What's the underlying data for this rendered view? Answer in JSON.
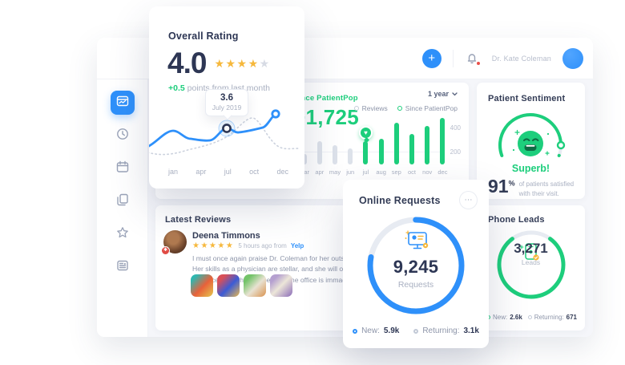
{
  "topbar": {
    "add_label": "+",
    "user_name": "Dr. Kate Coleman"
  },
  "rating_card": {
    "title": "Overall Rating",
    "score": "4.0",
    "stars_filled": "★★★★",
    "stars_empty": "★",
    "delta": "+0.5",
    "delta_text": " points from last month",
    "tooltip_value": "3.6",
    "tooltip_label": "July 2019",
    "months": [
      "jan",
      "apr",
      "jul",
      "oct",
      "dec"
    ]
  },
  "reviews_chart": {
    "range_label": "1 year",
    "since_label": "Since PatientPop",
    "total": "+1,725",
    "legend": {
      "reviews": "Reviews",
      "since": "Since PatientPop"
    },
    "y_ticks": [
      "400",
      "200"
    ],
    "chart_data": {
      "type": "bar",
      "categories": [
        "mar",
        "apr",
        "may",
        "jun",
        "jul",
        "aug",
        "sep",
        "oct",
        "nov",
        "dec"
      ],
      "values": [
        90,
        200,
        160,
        135,
        200,
        220,
        350,
        260,
        325,
        400
      ],
      "green_from_index": 4,
      "ylim": [
        0,
        400
      ],
      "colors": {
        "before": "#dde2ea",
        "after": "#1dce7c"
      }
    }
  },
  "sentiment": {
    "title": "Patient Sentiment",
    "status": "Superb!",
    "percent": "91",
    "percent_sign": "%",
    "caption": "of patients satisfied with their visit.",
    "gauge_dash": "91 9",
    "chart_data": {
      "type": "gauge",
      "percent": 91
    }
  },
  "online_requests": {
    "title": "Online Requests",
    "menu": "⋯",
    "value": "9,245",
    "unit": "Requests",
    "dash": "78 22",
    "legend": {
      "new_label": "New:",
      "new_value": "5.9k",
      "returning_label": "Returning:",
      "returning_value": "3.1k"
    },
    "chart_data": {
      "type": "donut",
      "total": 9245,
      "new": 5900,
      "returning": 3100
    }
  },
  "phone_leads": {
    "title": "Phone Leads",
    "value": "3,271",
    "unit": "Leads",
    "dash": "80 20",
    "legend": {
      "new_label": "New:",
      "new_value": "2.6k",
      "returning_label": "Returning:",
      "returning_value": "671"
    },
    "chart_data": {
      "type": "donut",
      "total": 3271,
      "new": 2600,
      "returning": 671
    }
  },
  "latest_reviews": {
    "title": "Latest Reviews",
    "review": {
      "author": "Deena Timmons",
      "stars": "★★★★★",
      "ago": "5 hours ago from",
      "source": "Yelp",
      "text": "I must once again praise Dr. Coleman for her outstanding advise and medical care. Her skills as a physician are stellar, and she will only recommend procedures that can enhance your physical beauty. The office is immaculate, colorful and inviting."
    }
  },
  "colors": {
    "accent_blue": "#2e90fa",
    "accent_green": "#1dce7c",
    "gold": "#f6b83c",
    "navy": "#333c56"
  }
}
